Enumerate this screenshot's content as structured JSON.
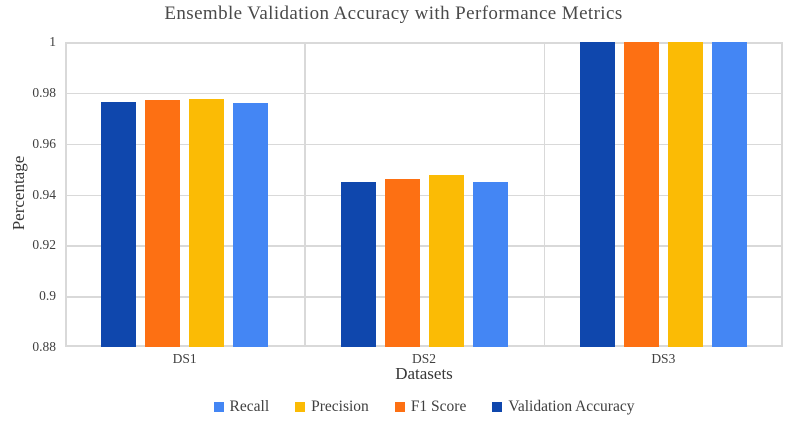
{
  "chart_data": {
    "type": "bar",
    "title": "Ensemble Validation Accuracy with Performance Metrics",
    "xlabel": "Datasets",
    "ylabel": "Percentage",
    "categories": [
      "DS1",
      "DS2",
      "DS3"
    ],
    "series": [
      {
        "name": "Validation Accuracy",
        "color": "#0F47AD",
        "values": [
          0.9762,
          0.9448,
          1.0
        ]
      },
      {
        "name": "F1 Score",
        "color": "#FD7013",
        "values": [
          0.977,
          0.946,
          1.0
        ]
      },
      {
        "name": "Precision",
        "color": "#FBBB05",
        "values": [
          0.9775,
          0.9475,
          1.0
        ]
      },
      {
        "name": "Recall",
        "color": "#4486F4",
        "values": [
          0.976,
          0.9448,
          1.0
        ]
      }
    ],
    "legend": {
      "position": "bottom",
      "order": [
        "Recall",
        "Precision",
        "F1 Score",
        "Validation Accuracy"
      ]
    },
    "ylim": [
      0.88,
      1.0
    ],
    "yticks": [
      {
        "value": 1.0,
        "label": "1"
      },
      {
        "value": 0.98,
        "label": "0.98"
      },
      {
        "value": 0.96,
        "label": "0.96"
      },
      {
        "value": 0.94,
        "label": "0.94"
      },
      {
        "value": 0.92,
        "label": "0.92"
      },
      {
        "value": 0.9,
        "label": "0.9"
      },
      {
        "value": 0.88,
        "label": "0.88"
      }
    ],
    "grid": {
      "horizontal": true,
      "vertical_category_separators": true
    },
    "style_colors": {
      "gridline": "#D9D9D9",
      "axis_text": "#404040",
      "title_text": "#4a4a4a"
    }
  }
}
